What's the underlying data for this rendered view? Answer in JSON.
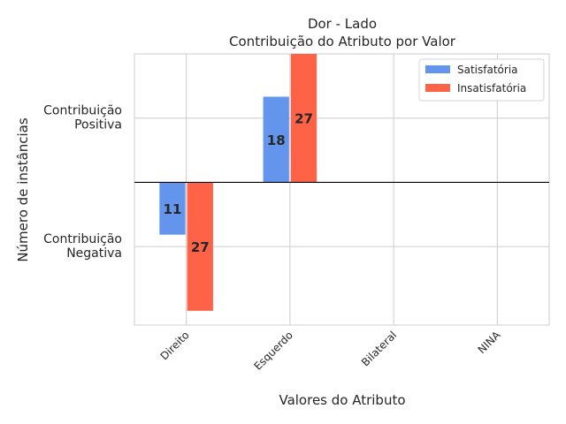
{
  "chart_data": {
    "type": "bar",
    "title": "Dor - Lado",
    "subtitle": "Contribuição do Atributo por Valor",
    "xlabel": "Valores do Atributo",
    "ylabel": "Número de instâncias",
    "categories": [
      "Direito",
      "Esquerdo",
      "Bilateral",
      "NINA"
    ],
    "series": [
      {
        "name": "Satisfatória",
        "color": "#6495ED",
        "values": [
          -11,
          18,
          0,
          0
        ],
        "labels": [
          "11",
          "18",
          "",
          ""
        ]
      },
      {
        "name": "Insatisfatória",
        "color": "#FF6347",
        "values": [
          -27,
          27,
          0,
          0
        ],
        "labels": [
          "27",
          "27",
          "",
          ""
        ]
      }
    ],
    "ylim": [
      -30,
      27
    ],
    "yticks": [
      {
        "value": 13.5,
        "lines": [
          "Contribuição",
          "Positiva"
        ]
      },
      {
        "value": -13.5,
        "lines": [
          "Contribuição",
          "Negativa"
        ]
      }
    ],
    "grid": true,
    "legend_position": "top-right",
    "zero_line": true
  }
}
